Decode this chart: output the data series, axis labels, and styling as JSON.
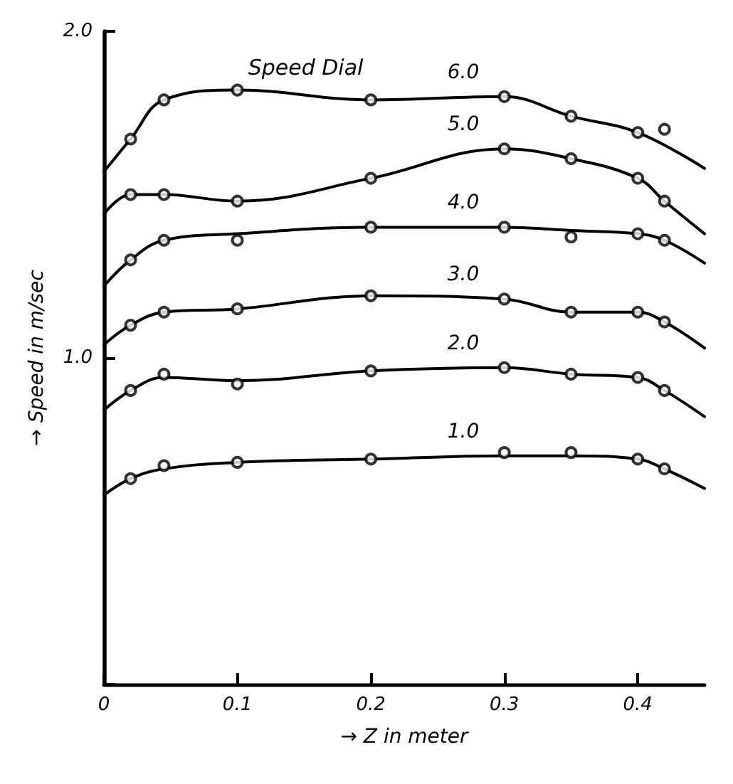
{
  "chart_data": {
    "type": "line",
    "xlabel": "→ Z in meter",
    "ylabel": "→ Speed in m/sec",
    "xlim": [
      0,
      0.45
    ],
    "ylim": [
      0,
      2
    ],
    "xticks": [
      0,
      0.1,
      0.2,
      0.3,
      0.4
    ],
    "yticks": [
      {
        "value": 0,
        "label": null
      },
      {
        "value": 1,
        "label": "1.0"
      },
      {
        "value": 2,
        "label": "2.0"
      }
    ],
    "grid": false,
    "line_style": "solid",
    "series": [
      {
        "type": "line",
        "name": "6.0",
        "marker": "none",
        "color": "#000000",
        "x": [
          0,
          0.02,
          0.045,
          0.1,
          0.2,
          0.3,
          0.35,
          0.4,
          0.45
        ],
        "values": [
          1.57,
          1.67,
          1.79,
          1.82,
          1.79,
          1.8,
          1.74,
          1.69,
          1.58
        ]
      },
      {
        "type": "scatter",
        "marker": "circle",
        "color": "#000000",
        "x": [
          0.02,
          0.045,
          0.1,
          0.2,
          0.3,
          0.35,
          0.4,
          0.42
        ],
        "values": [
          1.67,
          1.79,
          1.82,
          1.79,
          1.8,
          1.74,
          1.69,
          1.7
        ]
      },
      {
        "type": "line",
        "name": "5.0",
        "marker": "none",
        "color": "#000000",
        "x": [
          0,
          0.02,
          0.045,
          0.1,
          0.2,
          0.3,
          0.35,
          0.4,
          0.42,
          0.45
        ],
        "values": [
          1.44,
          1.5,
          1.5,
          1.48,
          1.55,
          1.64,
          1.61,
          1.55,
          1.48,
          1.38
        ]
      },
      {
        "type": "scatter",
        "marker": "circle",
        "color": "#000000",
        "x": [
          0.02,
          0.045,
          0.1,
          0.2,
          0.3,
          0.35,
          0.4,
          0.42
        ],
        "values": [
          1.5,
          1.5,
          1.48,
          1.55,
          1.64,
          1.61,
          1.55,
          1.48
        ]
      },
      {
        "type": "line",
        "name": "4.0",
        "marker": "none",
        "color": "#000000",
        "x": [
          0,
          0.02,
          0.045,
          0.1,
          0.2,
          0.3,
          0.35,
          0.4,
          0.42,
          0.45
        ],
        "values": [
          1.22,
          1.3,
          1.36,
          1.38,
          1.4,
          1.4,
          1.39,
          1.38,
          1.36,
          1.29
        ]
      },
      {
        "type": "scatter",
        "marker": "circle",
        "color": "#000000",
        "x": [
          0.02,
          0.045,
          0.1,
          0.2,
          0.3,
          0.35,
          0.4,
          0.42
        ],
        "values": [
          1.3,
          1.36,
          1.36,
          1.4,
          1.4,
          1.37,
          1.38,
          1.36
        ]
      },
      {
        "type": "line",
        "name": "3.0",
        "marker": "none",
        "color": "#000000",
        "x": [
          0,
          0.02,
          0.045,
          0.1,
          0.2,
          0.3,
          0.35,
          0.4,
          0.42,
          0.45
        ],
        "values": [
          1.04,
          1.1,
          1.14,
          1.15,
          1.19,
          1.18,
          1.14,
          1.14,
          1.11,
          1.03
        ]
      },
      {
        "type": "scatter",
        "marker": "circle",
        "color": "#000000",
        "x": [
          0.02,
          0.045,
          0.1,
          0.2,
          0.3,
          0.35,
          0.4,
          0.42
        ],
        "values": [
          1.1,
          1.14,
          1.15,
          1.19,
          1.18,
          1.14,
          1.14,
          1.11
        ]
      },
      {
        "type": "line",
        "name": "2.0",
        "marker": "none",
        "color": "#000000",
        "x": [
          0,
          0.02,
          0.045,
          0.1,
          0.2,
          0.3,
          0.35,
          0.4,
          0.42,
          0.45
        ],
        "values": [
          0.84,
          0.9,
          0.94,
          0.93,
          0.96,
          0.97,
          0.95,
          0.94,
          0.9,
          0.82
        ]
      },
      {
        "type": "scatter",
        "marker": "circle",
        "color": "#000000",
        "x": [
          0.02,
          0.045,
          0.1,
          0.2,
          0.3,
          0.35,
          0.4,
          0.42
        ],
        "values": [
          0.9,
          0.95,
          0.92,
          0.96,
          0.97,
          0.95,
          0.94,
          0.9
        ]
      },
      {
        "type": "line",
        "name": "1.0",
        "marker": "none",
        "color": "#000000",
        "x": [
          0,
          0.02,
          0.045,
          0.1,
          0.2,
          0.3,
          0.35,
          0.4,
          0.42,
          0.45
        ],
        "values": [
          0.58,
          0.63,
          0.66,
          0.68,
          0.69,
          0.7,
          0.7,
          0.69,
          0.66,
          0.6
        ]
      },
      {
        "type": "scatter",
        "marker": "circle",
        "color": "#000000",
        "x": [
          0.02,
          0.045,
          0.1,
          0.2,
          0.3,
          0.35,
          0.4,
          0.42
        ],
        "values": [
          0.63,
          0.67,
          0.68,
          0.69,
          0.71,
          0.71,
          0.69,
          0.66
        ]
      }
    ],
    "legend_title": "Speed Dial"
  }
}
